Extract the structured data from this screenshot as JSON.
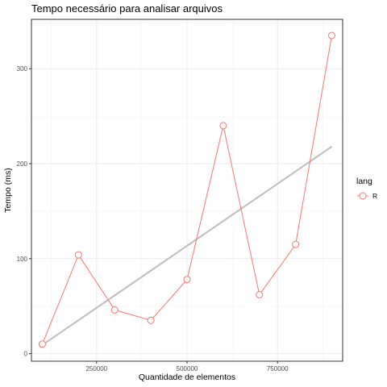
{
  "chart_data": {
    "type": "line",
    "title": "Tempo necessário para analisar arquivos",
    "xlabel": "Quantidade de elementos",
    "ylabel": "Tempo (ms)",
    "xlim": [
      70000,
      930000
    ],
    "ylim": [
      -8,
      352
    ],
    "x_ticks": [
      250000,
      500000,
      750000
    ],
    "y_ticks": [
      0,
      100,
      200,
      300
    ],
    "x_tick_labels": [
      "250000",
      "500000",
      "750000"
    ],
    "y_tick_labels": [
      "0",
      "100",
      "200",
      "300"
    ],
    "grid": true,
    "legend": {
      "title": "lang",
      "position": "right"
    },
    "series": [
      {
        "name": "R",
        "color": "#f8766d",
        "x": [
          100000,
          200000,
          300000,
          400000,
          500000,
          600000,
          700000,
          800000,
          900000
        ],
        "y": [
          10,
          104,
          46,
          35,
          78,
          240,
          62,
          115,
          335
        ]
      }
    ],
    "trend_line": {
      "color": "#bdbdbd",
      "x": [
        100000,
        900000
      ],
      "y": [
        9,
        218
      ]
    }
  }
}
